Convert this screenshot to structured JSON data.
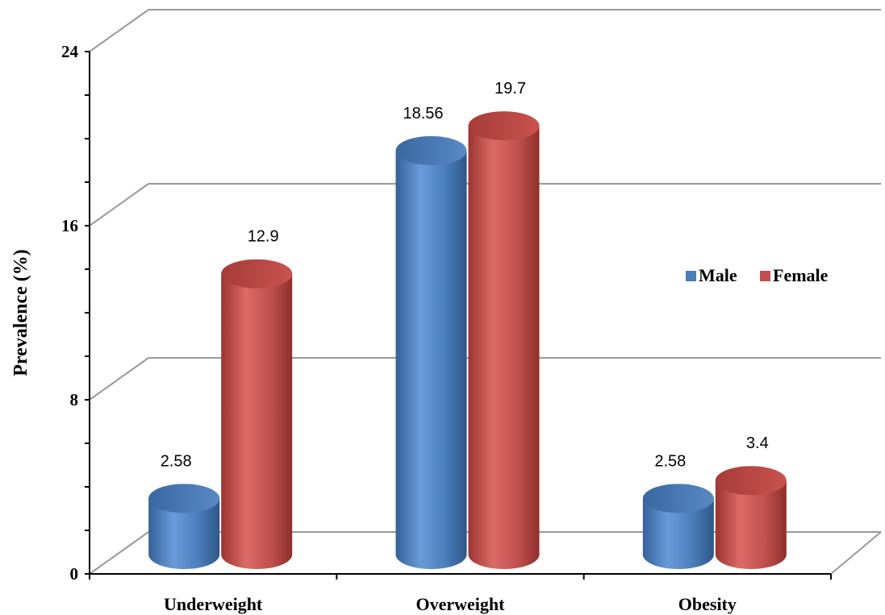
{
  "chart_data": {
    "type": "bar",
    "style": "3d-cylinder",
    "title": "",
    "xlabel": "",
    "ylabel": "Prevalence (%)",
    "ylim": [
      0,
      24
    ],
    "yticks": [
      "0",
      "8",
      "16",
      "24"
    ],
    "grid": true,
    "legend_position": "right",
    "categories": [
      "Underweight",
      "Overweight",
      "Obesity"
    ],
    "series": [
      {
        "name": "Male",
        "color": "#4a7ebb",
        "values": [
          2.58,
          18.56,
          2.58
        ],
        "labels": [
          "2.58",
          "18.56",
          "2.58"
        ]
      },
      {
        "name": "Female",
        "color": "#c0504d",
        "values": [
          12.9,
          19.7,
          3.4
        ],
        "labels": [
          "12.9",
          "19.7",
          "3.4"
        ]
      }
    ]
  }
}
